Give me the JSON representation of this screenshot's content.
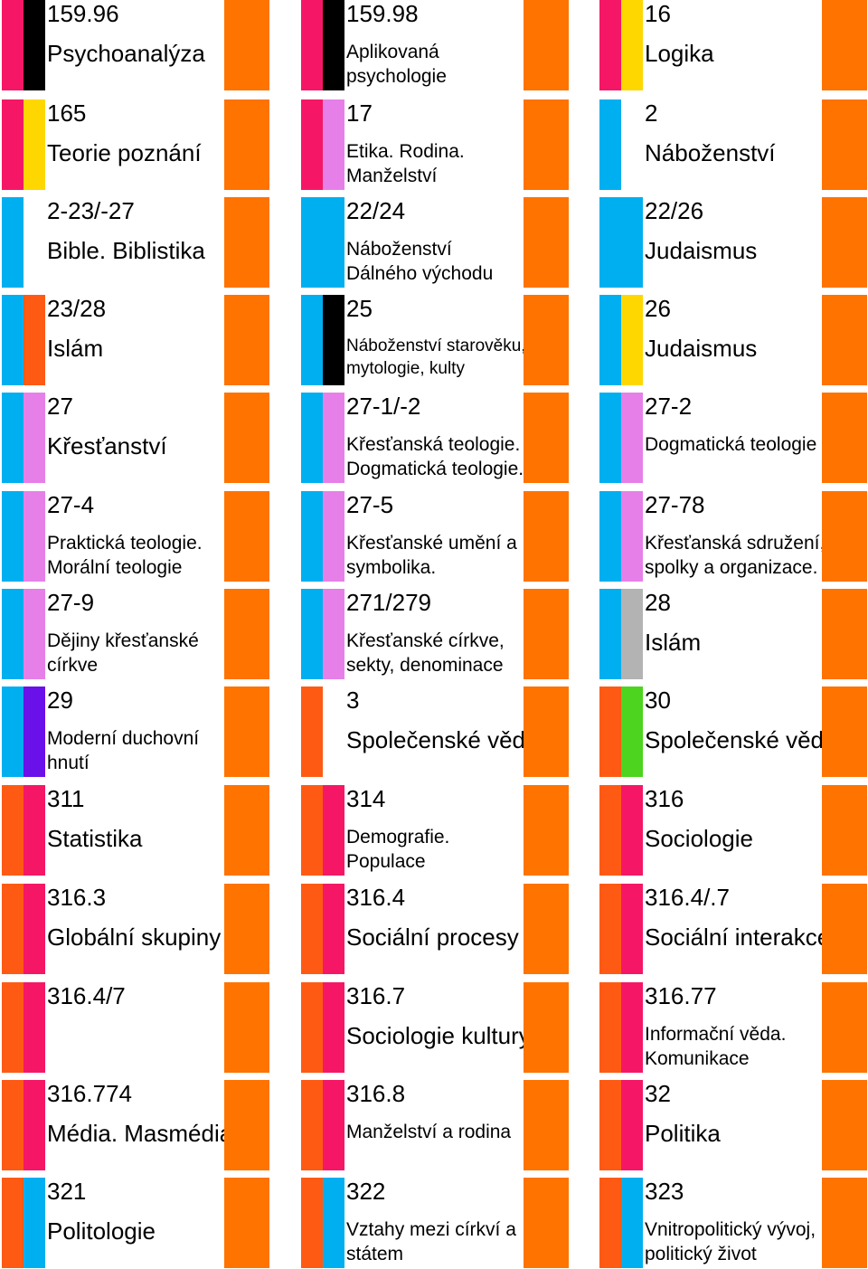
{
  "colors": {
    "pink": "#f51766",
    "black": "#000000",
    "yellow": "#ffd700",
    "cyan": "#00aff0",
    "orange": "#ff7300",
    "red_orange": "#ff5a14",
    "violet": "#e680e8",
    "purple": "#6a10e8",
    "gray": "#b3b3b3",
    "green": "#4cd41e"
  },
  "cells": [
    {
      "code": "159.96",
      "label": "Psychoanalýza",
      "bars": [
        "pink",
        "black"
      ]
    },
    {
      "code": "159.98",
      "label": "Aplikovaná psychologie",
      "bars": [
        "pink",
        "black"
      ]
    },
    {
      "code": "16",
      "label": "Logika",
      "bars": [
        "pink",
        "yellow"
      ]
    },
    {
      "code": "165",
      "label": "Teorie poznání",
      "bars": [
        "pink",
        "yellow"
      ]
    },
    {
      "code": "17",
      "label": "Etika. Rodina. Manželství",
      "bars": [
        "pink",
        "violet"
      ]
    },
    {
      "code": "2",
      "label": "Náboženství",
      "bars": [
        "cyan",
        "white"
      ]
    },
    {
      "code": "2-23/-27",
      "label": "Bible. Biblistika",
      "bars": [
        "cyan",
        "white"
      ]
    },
    {
      "code": "22/24",
      "label": "Náboženství Dálného východu",
      "bars": [
        "cyan",
        "cyan"
      ]
    },
    {
      "code": "22/26",
      "label": "Judaismus",
      "bars": [
        "cyan",
        "cyan"
      ]
    },
    {
      "code": "23/28",
      "label": "Islám",
      "bars": [
        "cyan",
        "red_orange"
      ]
    },
    {
      "code": "25",
      "label": "Náboženství starověku, mytologie, kulty",
      "bars": [
        "cyan",
        "black"
      ]
    },
    {
      "code": "26",
      "label": "Judaismus",
      "bars": [
        "cyan",
        "yellow"
      ]
    },
    {
      "code": "27",
      "label": "Křesťanství",
      "bars": [
        "cyan",
        "violet"
      ]
    },
    {
      "code": "27-1/-2",
      "label": "Křesťanská teologie. Dogmatická teologie.",
      "bars": [
        "cyan",
        "violet"
      ]
    },
    {
      "code": "27-2",
      "label": "Dogmatická teologie",
      "bars": [
        "cyan",
        "violet"
      ]
    },
    {
      "code": "27-4",
      "label": "Praktická teologie. Morální teologie",
      "bars": [
        "cyan",
        "violet"
      ]
    },
    {
      "code": "27-5",
      "label": "Křesťanské umění a symbolika.",
      "bars": [
        "cyan",
        "violet"
      ]
    },
    {
      "code": "27-78",
      "label": "Křesťanská sdružení, spolky a organizace.",
      "bars": [
        "cyan",
        "violet"
      ]
    },
    {
      "code": "27-9",
      "label": "Dějiny křesťanské církve",
      "bars": [
        "cyan",
        "violet"
      ]
    },
    {
      "code": "271/279",
      "label": "Křesťanské církve, sekty, denominace",
      "bars": [
        "cyan",
        "violet"
      ]
    },
    {
      "code": "28",
      "label": "Islám",
      "bars": [
        "cyan",
        "gray"
      ]
    },
    {
      "code": "29",
      "label": "Moderní duchovní hnutí",
      "bars": [
        "cyan",
        "purple"
      ]
    },
    {
      "code": "3",
      "label": "Společenské vědy",
      "bars": [
        "red_orange",
        "white"
      ]
    },
    {
      "code": "30",
      "label": "Společenské vědy",
      "bars": [
        "red_orange",
        "green"
      ]
    },
    {
      "code": "311",
      "label": "Statistika",
      "bars": [
        "red_orange",
        "pink"
      ]
    },
    {
      "code": "314",
      "label": "Demografie. Populace",
      "bars": [
        "red_orange",
        "pink"
      ]
    },
    {
      "code": "316",
      "label": "Sociologie",
      "bars": [
        "red_orange",
        "pink"
      ]
    },
    {
      "code": "316.3",
      "label": "Globální skupiny",
      "bars": [
        "red_orange",
        "pink"
      ]
    },
    {
      "code": "316.4",
      "label": "Sociální procesy",
      "bars": [
        "red_orange",
        "pink"
      ]
    },
    {
      "code": "316.4/.7",
      "label": "Sociální interakce",
      "bars": [
        "red_orange",
        "pink"
      ]
    },
    {
      "code": "316.4/7",
      "label": "",
      "bars": [
        "red_orange",
        "pink"
      ]
    },
    {
      "code": "316.7",
      "label": "Sociologie kultury",
      "bars": [
        "red_orange",
        "pink"
      ]
    },
    {
      "code": "316.77",
      "label": "Informační věda. Komunikace",
      "bars": [
        "red_orange",
        "pink"
      ]
    },
    {
      "code": "316.774",
      "label": "Média. Masmédia",
      "bars": [
        "red_orange",
        "pink"
      ]
    },
    {
      "code": "316.8",
      "label": "Manželství a rodina",
      "bars": [
        "red_orange",
        "pink"
      ]
    },
    {
      "code": "32",
      "label": "Politika",
      "bars": [
        "red_orange",
        "pink"
      ]
    },
    {
      "code": "321",
      "label": "Politologie",
      "bars": [
        "red_orange",
        "cyan"
      ]
    },
    {
      "code": "322",
      "label": "Vztahy mezi církví a státem",
      "bars": [
        "red_orange",
        "cyan"
      ]
    },
    {
      "code": "323",
      "label": "Vnitropolitický vývoj, politický život",
      "bars": [
        "red_orange",
        "cyan"
      ]
    }
  ]
}
